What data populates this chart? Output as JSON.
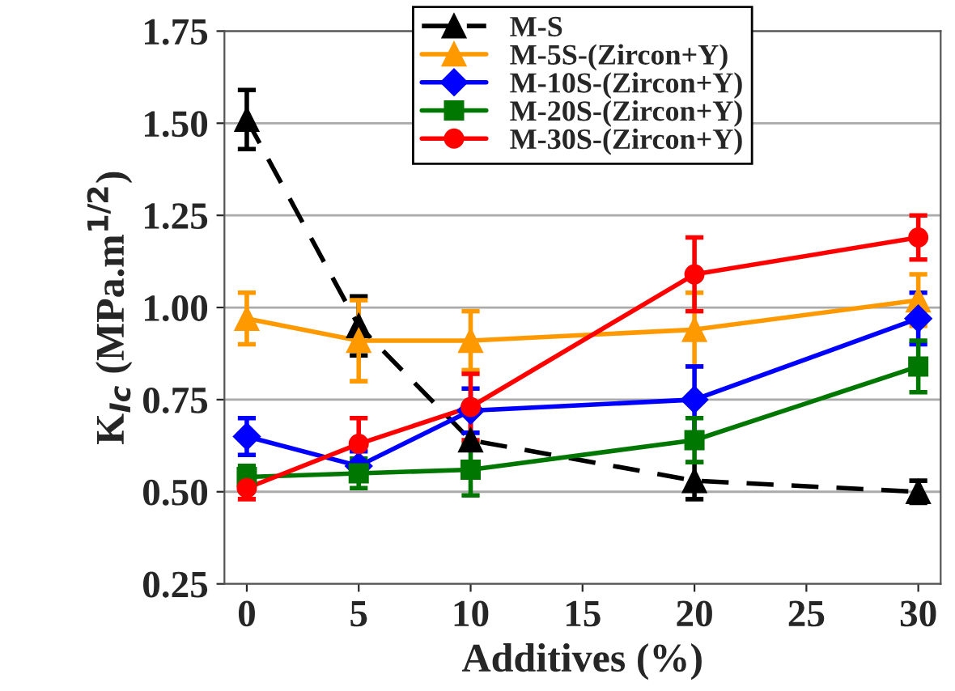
{
  "chart_data": {
    "type": "line",
    "xlabel": "Additives (%)",
    "ylabel": "K$_{Ic}$ (MPa.m$^{1/2}$)",
    "x": [
      0,
      5,
      10,
      20,
      30
    ],
    "series": [
      {
        "name": "M-S",
        "color": "#000000",
        "marker": "triangle",
        "line_style": "dashed",
        "values": [
          1.51,
          0.95,
          0.64,
          0.53,
          0.5
        ],
        "errors": [
          0.08,
          0.08,
          null,
          0.05,
          0.03
        ]
      },
      {
        "name": "M-5S-(Zircon+Y)",
        "color": "#ff9900",
        "marker": "triangle",
        "line_style": "solid",
        "values": [
          0.97,
          0.91,
          0.91,
          0.94,
          1.02
        ],
        "errors": [
          0.07,
          0.11,
          0.08,
          0.1,
          0.07
        ]
      },
      {
        "name": "M-10S-(Zircon+Y)",
        "color": "#0000ff",
        "marker": "diamond",
        "line_style": "solid",
        "values": [
          0.65,
          0.57,
          0.72,
          0.75,
          0.97
        ],
        "errors": [
          0.05,
          0.04,
          0.06,
          0.09,
          0.07
        ]
      },
      {
        "name": "M-20S-(Zircon+Y)",
        "color": "#007700",
        "marker": "square",
        "line_style": "solid",
        "values": [
          0.54,
          0.55,
          0.56,
          0.64,
          0.84
        ],
        "errors": [
          0.03,
          0.04,
          0.07,
          0.06,
          0.07
        ]
      },
      {
        "name": "M-30S-(Zircon+Y)",
        "color": "#ff0000",
        "marker": "circle",
        "line_style": "solid",
        "values": [
          0.51,
          0.63,
          0.73,
          1.09,
          1.19
        ],
        "errors": [
          0.03,
          0.07,
          0.09,
          0.1,
          0.06
        ]
      }
    ],
    "xlim": [
      -1,
      31
    ],
    "xticks": [
      0,
      5,
      10,
      15,
      20,
      25,
      30
    ],
    "ylim": [
      0.25,
      1.75
    ],
    "yticks": [
      {
        "value": 0.25,
        "label": "0.25"
      },
      {
        "value": 0.5,
        "label": "0.50"
      },
      {
        "value": 0.75,
        "label": "0.75"
      },
      {
        "value": 1.0,
        "label": "1.00"
      },
      {
        "value": 1.25,
        "label": "1.25"
      },
      {
        "value": 1.5,
        "label": "1.50"
      },
      {
        "value": 1.75,
        "label": "1.75"
      }
    ],
    "grid": "y",
    "legend": "top"
  }
}
